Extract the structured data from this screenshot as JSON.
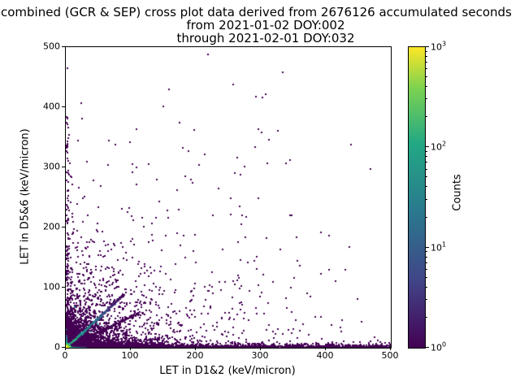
{
  "title": {
    "line1": "combined (GCR & SEP) cross plot data derived from 2676126 accumulated seconds",
    "line2": "from 2021-01-02 DOY:002",
    "line3": "through 2021-02-01 DOY:032"
  },
  "chart_data": {
    "type": "scatter",
    "title": "combined (GCR & SEP) cross plot data derived from 2676126 accumulated seconds from 2021-01-02 DOY:002 through 2021-02-01 DOY:032",
    "xlabel": "LET in D1&2 (keV/micron)",
    "ylabel": "LET in D5&6 (keV/micron)",
    "xlim": [
      0,
      500
    ],
    "ylim": [
      0,
      500
    ],
    "xticks": [
      0,
      100,
      200,
      300,
      400,
      500
    ],
    "yticks": [
      0,
      100,
      200,
      300,
      400,
      500
    ],
    "grid": false,
    "marker_color": "#440154",
    "colorbar": {
      "label": "Counts",
      "scale": "log",
      "min": 1,
      "max": 1000,
      "colormap": "viridis",
      "ticks": [
        {
          "value": 1,
          "base": "10",
          "exp": "0"
        },
        {
          "value": 10,
          "base": "10",
          "exp": "1"
        },
        {
          "value": 100,
          "base": "10",
          "exp": "2"
        },
        {
          "value": 1000,
          "base": "10",
          "exp": "3"
        }
      ],
      "viridis_stops": [
        "#440154",
        "#414487",
        "#2a788e",
        "#22a884",
        "#7ad151",
        "#fde725"
      ]
    },
    "distribution": {
      "description": "2D histogram-style scatter: very dense hot core at origin (yellow/green ~1000 counts at 0,0), teal streaks along both axes edges and along the y=x diagonal up to ~85 keV/micron, dense purple single-count strip along y=0 for all x, sparse purple column along x=0 up to y~385, diffuse purple cloud for x<250 & y<250, sparse outliers elsewhere",
      "seed": 42,
      "components": [
        {
          "type": "blob",
          "n": 3200,
          "sx": 15,
          "sy": 12,
          "speckle": 0.12
        },
        {
          "type": "blob",
          "n": 1100,
          "sx": 50,
          "sy": 40,
          "speckle": 0.02
        },
        {
          "type": "blob",
          "n": 450,
          "sx": 115,
          "sy": 80,
          "speckle": 0
        },
        {
          "type": "blob",
          "n": 130,
          "sx": 195,
          "sy": 135,
          "speckle": 0
        },
        {
          "type": "hstrip",
          "n": 2400,
          "xmax": 500,
          "bias": 1.7,
          "ymean": 2.2
        },
        {
          "type": "hstrip",
          "n": 900,
          "xmax": 150,
          "bias": 1.2,
          "ymean": 4
        },
        {
          "type": "vstrip",
          "n": 170,
          "ymax": 385,
          "bias": 2.4,
          "xmean": 1.3
        },
        {
          "type": "diag",
          "n": 320,
          "len": 88,
          "slope": 1,
          "jitter": 2.4,
          "stops": [
            "#43bf71",
            "#21918c",
            "#2c728e",
            "#443983",
            "#440154"
          ]
        },
        {
          "type": "diag",
          "n": 150,
          "len": 115,
          "slope": 0.52,
          "jitter": 3,
          "stops": [
            "#440154",
            "#440154"
          ]
        },
        {
          "type": "edge",
          "dir": "h",
          "len": 30,
          "stops": [
            "#5ec962",
            "#21918c",
            "#3b528b"
          ]
        },
        {
          "type": "edge",
          "dir": "v",
          "len": 20,
          "stops": [
            "#5ec962",
            "#21918c",
            "#3b528b"
          ]
        },
        {
          "type": "corner",
          "pixels": [
            [
              0,
              0,
              "#fde725"
            ],
            [
              1,
              0,
              "#d8e219"
            ],
            [
              0,
              1,
              "#addc30"
            ],
            [
              1,
              1,
              "#6ece58"
            ],
            [
              2,
              0,
              "#6ece58"
            ],
            [
              0,
              2,
              "#35b779"
            ],
            [
              2,
              1,
              "#35b779"
            ],
            [
              1,
              2,
              "#28ae80"
            ],
            [
              2,
              2,
              "#21918c"
            ],
            [
              3,
              0,
              "#21918c"
            ],
            [
              0,
              3,
              "#21918c"
            ]
          ]
        }
      ],
      "outlier_points": [
        [
          22,
          407
        ],
        [
          158,
          430
        ],
        [
          196,
          362
        ],
        [
          212,
          322
        ],
        [
          3,
          348
        ],
        [
          18,
          344
        ],
        [
          3,
          311
        ],
        [
          101,
          292
        ],
        [
          108,
          271
        ],
        [
          41,
          279
        ],
        [
          194,
          274
        ],
        [
          234,
          265
        ],
        [
          291,
          417
        ],
        [
          301,
          416
        ],
        [
          306,
          421
        ],
        [
          295,
          363
        ],
        [
          300,
          358
        ],
        [
          325,
          361
        ],
        [
          311,
          346
        ],
        [
          290,
          334
        ],
        [
          263,
          316
        ],
        [
          274,
          302
        ],
        [
          338,
          307
        ],
        [
          259,
          290
        ],
        [
          268,
          288
        ],
        [
          1,
          465
        ],
        [
          307,
          182
        ],
        [
          329,
          164
        ],
        [
          293,
          151
        ],
        [
          292,
          131
        ],
        [
          303,
          121
        ],
        [
          295,
          249
        ],
        [
          266,
          99
        ],
        [
          252,
          249
        ],
        [
          266,
          235
        ],
        [
          252,
          222
        ],
        [
          270,
          220
        ],
        [
          276,
          218
        ],
        [
          269,
          205
        ],
        [
          266,
          75
        ],
        [
          270,
          72
        ],
        [
          268,
          63
        ],
        [
          274,
          58
        ],
        [
          262,
          55
        ],
        [
          272,
          48
        ],
        [
          280,
          46
        ],
        [
          258,
          47
        ],
        [
          300,
          92
        ],
        [
          297,
          85
        ],
        [
          382,
          51
        ],
        [
          372,
          22
        ],
        [
          346,
          25
        ],
        [
          321,
          23
        ]
      ]
    }
  }
}
